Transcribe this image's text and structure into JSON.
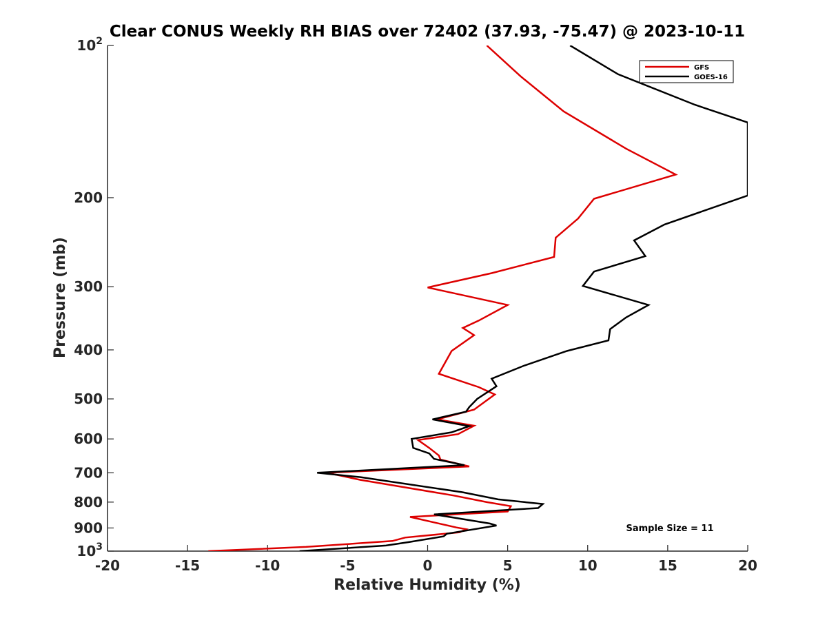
{
  "chart_data": {
    "type": "line",
    "title": "Clear CONUS Weekly RH BIAS over 72402 (37.93, -75.47) @ 2023-10-11",
    "xlabel": "Relative Humidity (%)",
    "ylabel": "Pressure (mb)",
    "xlim": [
      -20,
      20
    ],
    "ylim": [
      100,
      1000
    ],
    "yscale": "log",
    "y_reversed": true,
    "x_ticks": [
      {
        "value": -20,
        "label": "-20"
      },
      {
        "value": -15,
        "label": "-15"
      },
      {
        "value": -10,
        "label": "-10"
      },
      {
        "value": -5,
        "label": "-5"
      },
      {
        "value": 0,
        "label": "0"
      },
      {
        "value": 5,
        "label": "5"
      },
      {
        "value": 10,
        "label": "10"
      },
      {
        "value": 15,
        "label": "15"
      },
      {
        "value": 20,
        "label": "20"
      }
    ],
    "y_ticks": [
      {
        "value": 100,
        "base": "10",
        "exp": "2"
      },
      {
        "value": 200,
        "base": "200"
      },
      {
        "value": 300,
        "base": "300"
      },
      {
        "value": 400,
        "base": "400"
      },
      {
        "value": 500,
        "base": "500"
      },
      {
        "value": 600,
        "base": "600"
      },
      {
        "value": 700,
        "base": "700"
      },
      {
        "value": 800,
        "base": "800"
      },
      {
        "value": 900,
        "base": "900"
      },
      {
        "value": 1000,
        "base": "10",
        "exp": "3"
      }
    ],
    "legend": {
      "position": "top-right"
    },
    "annotation": "Sample Size = 11",
    "series": [
      {
        "name": "GFS",
        "color": "#dd0000",
        "points": [
          [
            3.7,
            100
          ],
          [
            5.8,
            115
          ],
          [
            8.5,
            135
          ],
          [
            12.4,
            160
          ],
          [
            15.5,
            180
          ],
          [
            10.4,
            201
          ],
          [
            9.4,
            220
          ],
          [
            8.0,
            240
          ],
          [
            7.9,
            262
          ],
          [
            4.0,
            282
          ],
          [
            0.0,
            301
          ],
          [
            5.0,
            326
          ],
          [
            3.2,
            350
          ],
          [
            2.2,
            362
          ],
          [
            2.9,
            374
          ],
          [
            1.5,
            402
          ],
          [
            0.7,
            446
          ],
          [
            3.2,
            474
          ],
          [
            4.2,
            490
          ],
          [
            3.6,
            506
          ],
          [
            2.9,
            525
          ],
          [
            0.6,
            549
          ],
          [
            2.9,
            565
          ],
          [
            1.9,
            587
          ],
          [
            -0.6,
            603
          ],
          [
            0.1,
            625
          ],
          [
            0.7,
            647
          ],
          [
            0.8,
            659
          ],
          [
            2.6,
            680
          ],
          [
            -6.3,
            700
          ],
          [
            -4.2,
            723
          ],
          [
            1.6,
            776
          ],
          [
            3.7,
            800
          ],
          [
            5.2,
            815
          ],
          [
            5.0,
            835
          ],
          [
            -1.1,
            856
          ],
          [
            1.8,
            898
          ],
          [
            2.4,
            905
          ],
          [
            2.0,
            918
          ],
          [
            -1.4,
            940
          ],
          [
            -2.2,
            955
          ],
          [
            -7.6,
            981
          ],
          [
            -13.7,
            1000
          ]
        ]
      },
      {
        "name": "GOES-16",
        "color": "#000000",
        "points": [
          [
            8.9,
            100
          ],
          [
            11.9,
            114
          ],
          [
            16.7,
            131
          ],
          [
            20.0,
            142
          ],
          [
            20.0,
            198
          ],
          [
            14.8,
            226
          ],
          [
            12.9,
            243
          ],
          [
            13.6,
            261
          ],
          [
            10.4,
            280
          ],
          [
            9.7,
            299
          ],
          [
            13.8,
            326
          ],
          [
            12.4,
            345
          ],
          [
            11.4,
            364
          ],
          [
            11.3,
            383
          ],
          [
            8.7,
            402
          ],
          [
            6.0,
            430
          ],
          [
            4.0,
            456
          ],
          [
            4.3,
            472
          ],
          [
            3.1,
            500
          ],
          [
            2.6,
            519
          ],
          [
            2.4,
            530
          ],
          [
            0.3,
            549
          ],
          [
            2.6,
            566
          ],
          [
            1.5,
            582
          ],
          [
            -1.0,
            600
          ],
          [
            -0.9,
            625
          ],
          [
            0.1,
            641
          ],
          [
            0.4,
            657
          ],
          [
            2.3,
            676
          ],
          [
            -6.9,
            700
          ],
          [
            -4.2,
            714
          ],
          [
            2.2,
            765
          ],
          [
            4.4,
            790
          ],
          [
            7.2,
            807
          ],
          [
            6.9,
            822
          ],
          [
            0.4,
            846
          ],
          [
            3.9,
            882
          ],
          [
            4.3,
            890
          ],
          [
            1.2,
            924
          ],
          [
            1.0,
            935
          ],
          [
            -1.2,
            960
          ],
          [
            -2.6,
            975
          ],
          [
            -8.0,
            1000
          ]
        ]
      }
    ]
  }
}
